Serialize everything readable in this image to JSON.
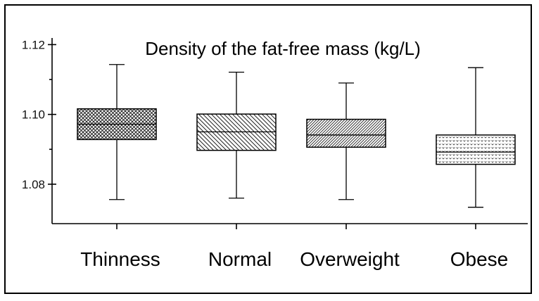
{
  "chart_data": {
    "type": "boxplot",
    "title": "Density of the fat-free mass (kg/L)",
    "xlabel": "",
    "ylabel": "",
    "ylim": [
      1.0687,
      1.1219
    ],
    "yticks": [
      1.08,
      1.1,
      1.12
    ],
    "ytick_labels": [
      "1.08",
      "1.10",
      "1.12"
    ],
    "minor_yticks": [
      1.09,
      1.11
    ],
    "grid": false,
    "categories": [
      "Thinness",
      "Normal",
      "Overweight",
      "Obese"
    ],
    "boxes": [
      {
        "name": "Thinness",
        "whislo": 1.0756,
        "q1": 1.0928,
        "med": 1.0972,
        "q3": 1.1016,
        "whishi": 1.1143,
        "pattern": "crosshatch"
      },
      {
        "name": "Normal",
        "whislo": 1.076,
        "q1": 1.0897,
        "med": 1.095,
        "q3": 1.1001,
        "whishi": 1.1121,
        "pattern": "diagonal"
      },
      {
        "name": "Overweight",
        "whislo": 1.0756,
        "q1": 1.0906,
        "med": 1.0941,
        "q3": 1.0986,
        "whishi": 1.109,
        "pattern": "diagonal-dense"
      },
      {
        "name": "Obese",
        "whislo": 1.0734,
        "q1": 1.0857,
        "med": 1.0892,
        "q3": 1.0941,
        "whishi": 1.1134,
        "pattern": "dots"
      }
    ]
  }
}
